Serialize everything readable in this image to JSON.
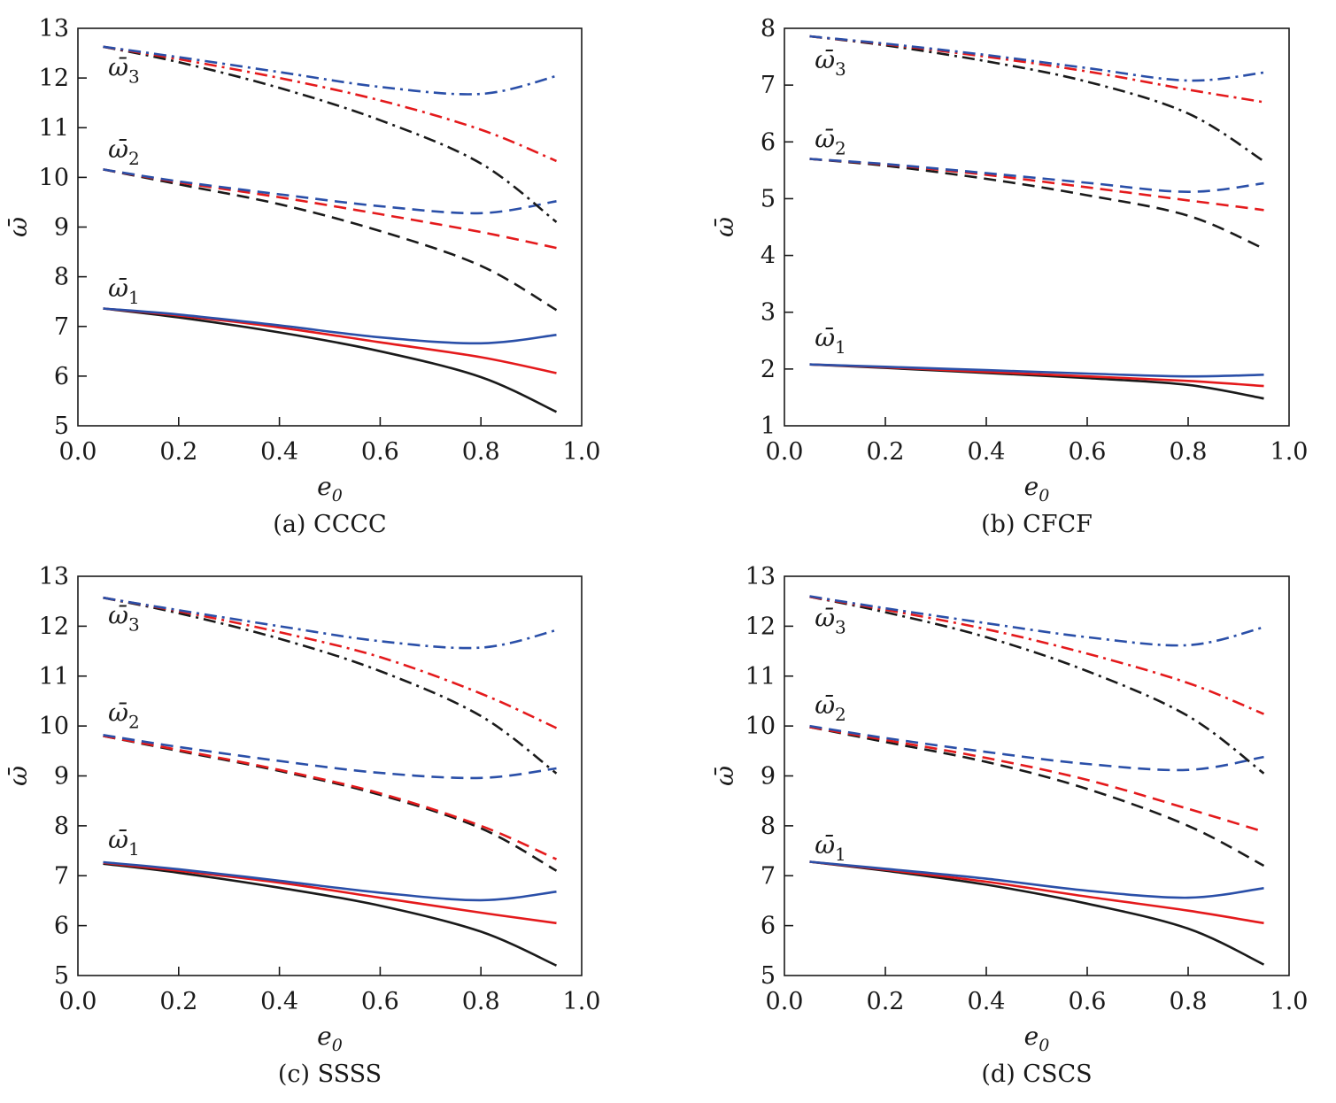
{
  "chart_data": [
    {
      "type": "line",
      "caption": "(a) CCCC",
      "xlabel": "e0",
      "ylabel": "ω̄",
      "xlim": [
        0.0,
        1.0
      ],
      "ylim": [
        5,
        13
      ],
      "xticks": [
        "0.0",
        "0.2",
        "0.4",
        "0.6",
        "0.8",
        "1.0"
      ],
      "yticks": [
        "5",
        "6",
        "7",
        "8",
        "9",
        "10",
        "11",
        "12",
        "13"
      ],
      "x": [
        0.05,
        0.2,
        0.4,
        0.6,
        0.8,
        0.95
      ],
      "mode_labels": [
        {
          "text": "ω̄",
          "sub": "1",
          "x": 0.06,
          "y": 7.6
        },
        {
          "text": "ω̄",
          "sub": "2",
          "x": 0.06,
          "y": 10.4
        },
        {
          "text": "ω̄",
          "sub": "3",
          "x": 0.06,
          "y": 12.05
        }
      ],
      "series": [
        {
          "mode": 1,
          "color": "#1a1a1a",
          "style": "solid",
          "values": [
            7.36,
            7.18,
            6.88,
            6.5,
            5.98,
            5.28
          ]
        },
        {
          "mode": 1,
          "color": "#e41a1c",
          "style": "solid",
          "values": [
            7.36,
            7.22,
            6.98,
            6.68,
            6.38,
            6.06
          ]
        },
        {
          "mode": 1,
          "color": "#2a4fa8",
          "style": "solid",
          "values": [
            7.36,
            7.24,
            7.02,
            6.78,
            6.66,
            6.83
          ]
        },
        {
          "mode": 2,
          "color": "#1a1a1a",
          "style": "dashed",
          "values": [
            10.16,
            9.86,
            9.46,
            8.92,
            8.22,
            7.33
          ]
        },
        {
          "mode": 2,
          "color": "#e41a1c",
          "style": "dashed",
          "values": [
            10.16,
            9.9,
            9.6,
            9.26,
            8.9,
            8.58
          ]
        },
        {
          "mode": 2,
          "color": "#2a4fa8",
          "style": "dashed",
          "values": [
            10.16,
            9.92,
            9.66,
            9.42,
            9.28,
            9.52
          ]
        },
        {
          "mode": 3,
          "color": "#1a1a1a",
          "style": "dashdot",
          "values": [
            12.63,
            12.32,
            11.8,
            11.15,
            10.28,
            9.1
          ]
        },
        {
          "mode": 3,
          "color": "#e41a1c",
          "style": "dashdot",
          "values": [
            12.63,
            12.38,
            12.0,
            11.55,
            10.96,
            10.33
          ]
        },
        {
          "mode": 3,
          "color": "#2a4fa8",
          "style": "dashdot",
          "values": [
            12.63,
            12.42,
            12.12,
            11.82,
            11.68,
            12.04
          ]
        }
      ]
    },
    {
      "type": "line",
      "caption": "(b) CFCF",
      "xlabel": "e0",
      "ylabel": "ω̄",
      "xlim": [
        0.0,
        1.0
      ],
      "ylim": [
        1,
        8
      ],
      "xticks": [
        "0.0",
        "0.2",
        "0.4",
        "0.6",
        "0.8",
        "1.0"
      ],
      "yticks": [
        "1",
        "2",
        "3",
        "4",
        "5",
        "6",
        "7",
        "8"
      ],
      "x": [
        0.05,
        0.2,
        0.4,
        0.6,
        0.8,
        0.95
      ],
      "mode_labels": [
        {
          "text": "ω̄",
          "sub": "1",
          "x": 0.06,
          "y": 2.4
        },
        {
          "text": "ω̄",
          "sub": "2",
          "x": 0.06,
          "y": 5.9
        },
        {
          "text": "ω̄",
          "sub": "3",
          "x": 0.06,
          "y": 7.3
        }
      ],
      "series": [
        {
          "mode": 1,
          "color": "#1a1a1a",
          "style": "solid",
          "values": [
            2.08,
            2.02,
            1.93,
            1.84,
            1.72,
            1.48
          ]
        },
        {
          "mode": 1,
          "color": "#e41a1c",
          "style": "solid",
          "values": [
            2.08,
            2.03,
            1.95,
            1.87,
            1.79,
            1.7
          ]
        },
        {
          "mode": 1,
          "color": "#2a4fa8",
          "style": "solid",
          "values": [
            2.08,
            2.04,
            1.98,
            1.92,
            1.87,
            1.9
          ]
        },
        {
          "mode": 2,
          "color": "#1a1a1a",
          "style": "dashed",
          "values": [
            5.7,
            5.58,
            5.35,
            5.06,
            4.7,
            4.12
          ]
        },
        {
          "mode": 2,
          "color": "#e41a1c",
          "style": "dashed",
          "values": [
            5.7,
            5.6,
            5.42,
            5.2,
            4.97,
            4.8
          ]
        },
        {
          "mode": 2,
          "color": "#2a4fa8",
          "style": "dashed",
          "values": [
            5.7,
            5.61,
            5.45,
            5.28,
            5.12,
            5.27
          ]
        },
        {
          "mode": 3,
          "color": "#1a1a1a",
          "style": "dashdot",
          "values": [
            7.86,
            7.7,
            7.42,
            7.06,
            6.5,
            5.66
          ]
        },
        {
          "mode": 3,
          "color": "#e41a1c",
          "style": "dashdot",
          "values": [
            7.86,
            7.72,
            7.5,
            7.24,
            6.92,
            6.7
          ]
        },
        {
          "mode": 3,
          "color": "#2a4fa8",
          "style": "dashdot",
          "values": [
            7.86,
            7.73,
            7.53,
            7.3,
            7.08,
            7.22
          ]
        }
      ]
    },
    {
      "type": "line",
      "caption": "(c) SSSS",
      "xlabel": "e0",
      "ylabel": "ω̄",
      "xlim": [
        0.0,
        1.0
      ],
      "ylim": [
        5,
        13
      ],
      "xticks": [
        "0.0",
        "0.2",
        "0.4",
        "0.6",
        "0.8",
        "1.0"
      ],
      "yticks": [
        "5",
        "6",
        "7",
        "8",
        "9",
        "10",
        "11",
        "12",
        "13"
      ],
      "x": [
        0.05,
        0.2,
        0.4,
        0.6,
        0.8,
        0.95
      ],
      "mode_labels": [
        {
          "text": "ω̄",
          "sub": "1",
          "x": 0.06,
          "y": 7.55
        },
        {
          "text": "ω̄",
          "sub": "2",
          "x": 0.06,
          "y": 10.1
        },
        {
          "text": "ω̄",
          "sub": "3",
          "x": 0.06,
          "y": 12.05
        }
      ],
      "series": [
        {
          "mode": 1,
          "color": "#1a1a1a",
          "style": "solid",
          "values": [
            7.24,
            7.06,
            6.76,
            6.4,
            5.88,
            5.2
          ]
        },
        {
          "mode": 1,
          "color": "#e41a1c",
          "style": "solid",
          "values": [
            7.26,
            7.1,
            6.86,
            6.56,
            6.26,
            6.05
          ]
        },
        {
          "mode": 1,
          "color": "#2a4fa8",
          "style": "solid",
          "values": [
            7.27,
            7.13,
            6.9,
            6.66,
            6.51,
            6.68
          ]
        },
        {
          "mode": 2,
          "color": "#1a1a1a",
          "style": "dashed",
          "values": [
            9.8,
            9.5,
            9.1,
            8.62,
            7.95,
            7.1
          ]
        },
        {
          "mode": 2,
          "color": "#e41a1c",
          "style": "dashed",
          "values": [
            9.8,
            9.52,
            9.12,
            8.65,
            8.0,
            7.33
          ]
        },
        {
          "mode": 2,
          "color": "#2a4fa8",
          "style": "dashed",
          "values": [
            9.82,
            9.58,
            9.3,
            9.06,
            8.96,
            9.15
          ]
        },
        {
          "mode": 3,
          "color": "#1a1a1a",
          "style": "dashdot",
          "values": [
            12.57,
            12.26,
            11.75,
            11.1,
            10.2,
            9.05
          ]
        },
        {
          "mode": 3,
          "color": "#e41a1c",
          "style": "dashdot",
          "values": [
            12.57,
            12.3,
            11.88,
            11.38,
            10.65,
            9.96
          ]
        },
        {
          "mode": 3,
          "color": "#2a4fa8",
          "style": "dashdot",
          "values": [
            12.57,
            12.32,
            12.0,
            11.7,
            11.57,
            11.92
          ]
        }
      ]
    },
    {
      "type": "line",
      "caption": "(d) CSCS",
      "xlabel": "e0",
      "ylabel": "ω̄",
      "xlim": [
        0.0,
        1.0
      ],
      "ylim": [
        5,
        13
      ],
      "xticks": [
        "0.0",
        "0.2",
        "0.4",
        "0.6",
        "0.8",
        "1.0"
      ],
      "yticks": [
        "5",
        "6",
        "7",
        "8",
        "9",
        "10",
        "11",
        "12",
        "13"
      ],
      "x": [
        0.05,
        0.2,
        0.4,
        0.6,
        0.8,
        0.95
      ],
      "mode_labels": [
        {
          "text": "ω̄",
          "sub": "1",
          "x": 0.06,
          "y": 7.45
        },
        {
          "text": "ω̄",
          "sub": "2",
          "x": 0.06,
          "y": 10.25
        },
        {
          "text": "ω̄",
          "sub": "3",
          "x": 0.06,
          "y": 12.0
        }
      ],
      "series": [
        {
          "mode": 1,
          "color": "#1a1a1a",
          "style": "solid",
          "values": [
            7.28,
            7.1,
            6.82,
            6.44,
            5.94,
            5.22
          ]
        },
        {
          "mode": 1,
          "color": "#e41a1c",
          "style": "solid",
          "values": [
            7.28,
            7.12,
            6.88,
            6.58,
            6.3,
            6.05
          ]
        },
        {
          "mode": 1,
          "color": "#2a4fa8",
          "style": "solid",
          "values": [
            7.28,
            7.14,
            6.94,
            6.7,
            6.56,
            6.75
          ]
        },
        {
          "mode": 2,
          "color": "#1a1a1a",
          "style": "dashed",
          "values": [
            9.98,
            9.68,
            9.28,
            8.74,
            8.0,
            7.2
          ]
        },
        {
          "mode": 2,
          "color": "#e41a1c",
          "style": "dashed",
          "values": [
            9.98,
            9.72,
            9.36,
            8.92,
            8.34,
            7.88
          ]
        },
        {
          "mode": 2,
          "color": "#2a4fa8",
          "style": "dashed",
          "values": [
            10.0,
            9.76,
            9.48,
            9.24,
            9.12,
            9.38
          ]
        },
        {
          "mode": 3,
          "color": "#1a1a1a",
          "style": "dashdot",
          "values": [
            12.59,
            12.28,
            11.78,
            11.1,
            10.2,
            9.05
          ]
        },
        {
          "mode": 3,
          "color": "#e41a1c",
          "style": "dashdot",
          "values": [
            12.59,
            12.33,
            11.94,
            11.45,
            10.86,
            10.24
          ]
        },
        {
          "mode": 3,
          "color": "#2a4fa8",
          "style": "dashdot",
          "values": [
            12.6,
            12.36,
            12.06,
            11.78,
            11.62,
            11.98
          ]
        }
      ]
    }
  ]
}
